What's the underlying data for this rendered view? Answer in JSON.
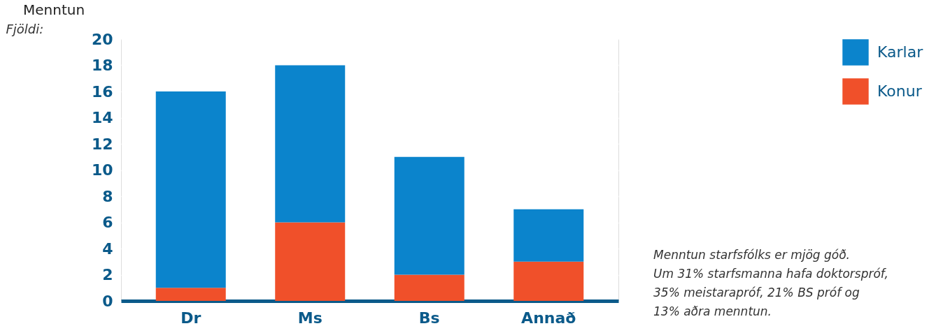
{
  "chart_data": {
    "type": "bar",
    "title": "Menntun",
    "ylabel": "Fjöldi:",
    "categories": [
      "Dr",
      "Ms",
      "Bs",
      "Annað"
    ],
    "series": [
      {
        "name": "Konur",
        "color": "#f0502a",
        "values": [
          1,
          6,
          2,
          3
        ]
      },
      {
        "name": "Karlar",
        "color": "#0b84cc",
        "values": [
          15,
          12,
          9,
          4
        ]
      }
    ],
    "stacked": true,
    "ylim": [
      0,
      20
    ],
    "yticks": [
      0,
      2,
      4,
      6,
      8,
      10,
      12,
      14,
      16,
      18,
      20
    ],
    "grid": "y",
    "legend": "top right",
    "annotations": [
      "Menntun starfsfólks er mjög góð.\nUm 31% starfsmanna hafa doktorspróf,\n35% meistarapróf, 21% BS próf og\n13% aðra menntun."
    ]
  }
}
